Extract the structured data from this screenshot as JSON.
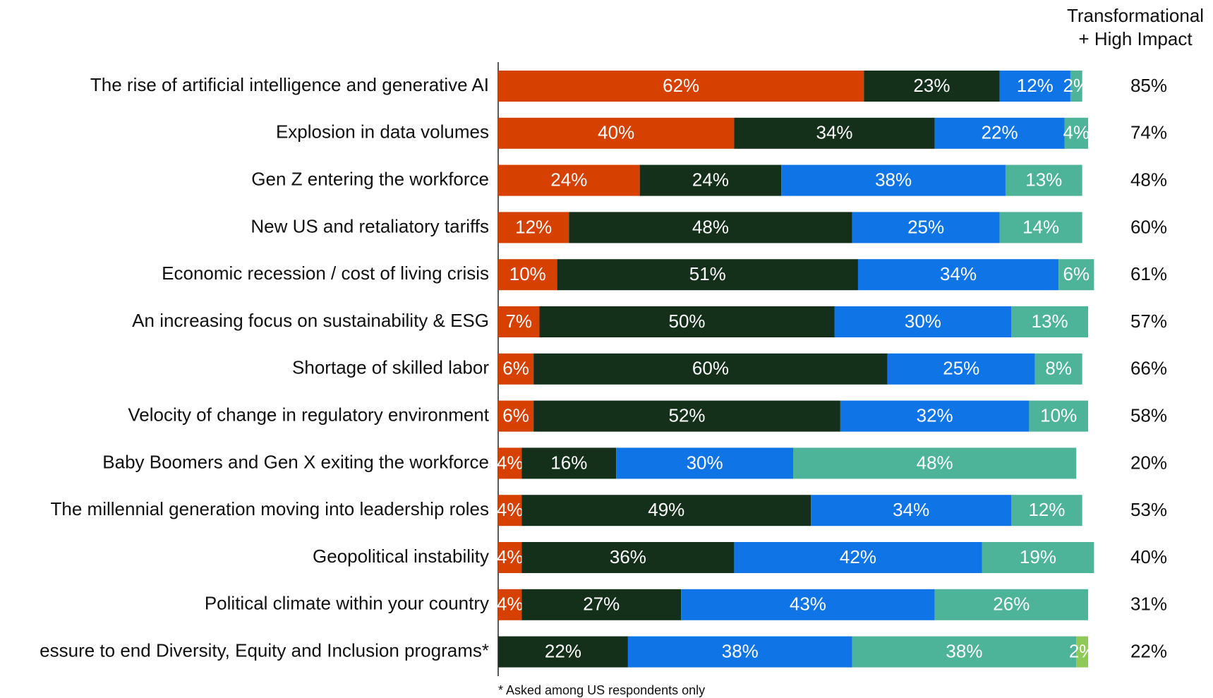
{
  "chart_data": {
    "type": "stacked-bar-horizontal",
    "total_header": [
      "Transformational",
      "+ High Impact"
    ],
    "footnote": "* Asked among US respondents only",
    "categories": [
      "The rise of artificial intelligence and generative AI",
      "Explosion in data volumes",
      "Gen Z entering the workforce",
      "New US and retaliatory tariffs",
      "Economic recession / cost of living crisis",
      "An increasing focus on sustainability & ESG",
      "Shortage of skilled labor",
      "Velocity of change in regulatory environment",
      "Baby Boomers and Gen X exiting the workforce",
      "The millennial generation moving into leadership roles",
      "Geopolitical instability",
      "Political climate within your country",
      "essure to end Diversity, Equity and Inclusion programs*"
    ],
    "xlim": [
      0,
      100
    ],
    "series": [
      {
        "color": "#d64000",
        "values": [
          62,
          40,
          24,
          12,
          10,
          7,
          6,
          6,
          4,
          4,
          4,
          4,
          null
        ],
        "value_labels": [
          "62%",
          "40%",
          "24%",
          "12%",
          "10%",
          "7%",
          "6%",
          "6%",
          "4%",
          "4%",
          "4%",
          "4%",
          null
        ]
      },
      {
        "color": "#14301a",
        "values": [
          23,
          34,
          24,
          48,
          51,
          50,
          60,
          52,
          16,
          49,
          36,
          27,
          22
        ],
        "value_labels": [
          "23%",
          "34%",
          "24%",
          "48%",
          "51%",
          "50%",
          "60%",
          "52%",
          "16%",
          "49%",
          "36%",
          "27%",
          "22%"
        ]
      },
      {
        "color": "#0f74e6",
        "values": [
          12,
          22,
          38,
          25,
          34,
          30,
          25,
          32,
          30,
          34,
          42,
          43,
          38
        ],
        "value_labels": [
          "12%",
          "22%",
          "38%",
          "25%",
          "34%",
          "30%",
          "25%",
          "32%",
          "30%",
          "34%",
          "42%",
          "43%",
          "38%"
        ]
      },
      {
        "color": "#4db399",
        "values": [
          2,
          4,
          13,
          14,
          6,
          13,
          8,
          10,
          48,
          12,
          19,
          26,
          38
        ],
        "value_labels": [
          "2%",
          "4%",
          "13%",
          "14%",
          "6%",
          "13%",
          "8%",
          "10%",
          "48%",
          "12%",
          "19%",
          "26%",
          "38%"
        ]
      },
      {
        "color": "#8fc95a",
        "values": [
          null,
          null,
          null,
          null,
          null,
          null,
          null,
          null,
          null,
          null,
          null,
          null,
          2
        ],
        "value_labels": [
          null,
          null,
          null,
          null,
          null,
          null,
          null,
          null,
          null,
          null,
          null,
          null,
          "2%"
        ]
      }
    ],
    "totals": {
      "values": [
        85,
        74,
        48,
        60,
        61,
        57,
        66,
        58,
        20,
        53,
        40,
        31,
        22
      ],
      "value_labels": [
        "85%",
        "74%",
        "48%",
        "60%",
        "61%",
        "57%",
        "66%",
        "58%",
        "20%",
        "53%",
        "40%",
        "31%",
        "22%"
      ]
    }
  }
}
